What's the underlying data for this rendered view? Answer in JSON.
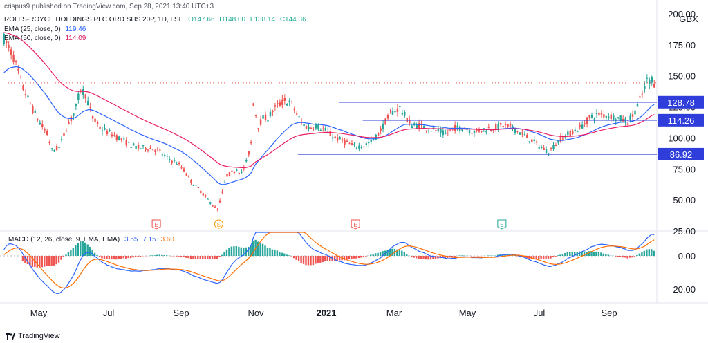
{
  "header": {
    "published": "crispus9 published on TradingView.com, Sep 28, 2021 13:40 UTC+3",
    "symbol": "ROLLS-ROYCE HOLDINGS PLC ORD SHS 20P, 1D, LSE",
    "ohlc": {
      "o": "O147.66",
      "h": "H148.00",
      "l": "L138.14",
      "c": "C144.36"
    },
    "ema25": {
      "label": "EMA (25, close, 0)",
      "value": "119.46"
    },
    "ema50": {
      "label": "EMA (50, close, 0)",
      "value": "114.09"
    },
    "currency": "GBX"
  },
  "macd_header": {
    "label": "MACD (12, 26, close, 9, EMA, EMA)",
    "v1": "3.55",
    "v2": "7.15",
    "v3": "3.60"
  },
  "footer": {
    "brand": "TradingView"
  },
  "colors": {
    "up": "#26a69a",
    "down": "#ef5350",
    "ema25": "#2962ff",
    "ema50": "#e91e63",
    "level": "#2f3eda",
    "macd": "#2962ff",
    "signal": "#ff6d00"
  },
  "chart_data": {
    "type": "candlestick",
    "x_ticks": [
      "May",
      "Jul",
      "Sep",
      "Nov",
      "2021",
      "Mar",
      "May",
      "Jul",
      "Sep"
    ],
    "price_axis": {
      "ticks": [
        "200.00",
        "175.00",
        "150.00",
        "125.00",
        "100.00",
        "75.00",
        "50.00",
        "25.00"
      ],
      "ylim": [
        25,
        200
      ]
    },
    "macd_axis": {
      "ticks": [
        "0.00",
        "-20.00"
      ]
    },
    "levels": [
      {
        "value": 128.78,
        "label": "128.78",
        "x_start": "Mar 2021"
      },
      {
        "value": 114.26,
        "label": "114.26",
        "x_start": "Apr 2021"
      },
      {
        "value": 86.92,
        "label": "86.92",
        "x_start": "Jan 2021"
      }
    ],
    "last_price": 144.36,
    "events": [
      {
        "label": "E",
        "x": "Jun 2020",
        "color": "#ef5350"
      },
      {
        "label": "S",
        "x": "Oct 2020",
        "color": "#ff9800"
      },
      {
        "label": "E",
        "x": "Mar 2021",
        "color": "#ef5350"
      },
      {
        "label": "E",
        "x": "Aug 2021",
        "color": "#26a69a"
      }
    ],
    "price_path": [
      [
        0,
        180
      ],
      [
        4,
        165
      ],
      [
        8,
        140
      ],
      [
        12,
        123
      ],
      [
        15,
        112
      ],
      [
        18,
        103
      ],
      [
        20,
        90
      ],
      [
        23,
        92
      ],
      [
        26,
        108
      ],
      [
        28,
        115
      ],
      [
        30,
        125
      ],
      [
        32,
        140
      ],
      [
        34,
        135
      ],
      [
        37,
        116
      ],
      [
        40,
        108
      ],
      [
        44,
        104
      ],
      [
        48,
        100
      ],
      [
        52,
        95
      ],
      [
        56,
        92
      ],
      [
        60,
        92
      ],
      [
        64,
        90
      ],
      [
        68,
        84
      ],
      [
        72,
        80
      ],
      [
        75,
        74
      ],
      [
        78,
        65
      ],
      [
        82,
        57
      ],
      [
        86,
        48
      ],
      [
        89,
        42
      ],
      [
        91,
        56
      ],
      [
        93,
        70
      ],
      [
        95,
        72
      ],
      [
        97,
        75
      ],
      [
        99,
        72
      ],
      [
        101,
        80
      ],
      [
        103,
        96
      ],
      [
        104,
        128
      ],
      [
        106,
        110
      ],
      [
        108,
        116
      ],
      [
        110,
        116
      ],
      [
        112,
        122
      ],
      [
        114,
        126
      ],
      [
        117,
        130
      ],
      [
        120,
        127
      ],
      [
        124,
        112
      ],
      [
        127,
        108
      ],
      [
        130,
        110
      ],
      [
        134,
        106
      ],
      [
        138,
        100
      ],
      [
        142,
        97
      ],
      [
        146,
        93
      ],
      [
        150,
        94
      ],
      [
        153,
        97
      ],
      [
        156,
        103
      ],
      [
        159,
        113
      ],
      [
        162,
        121
      ],
      [
        165,
        124
      ],
      [
        168,
        115
      ],
      [
        170,
        110
      ],
      [
        173,
        110
      ],
      [
        176,
        108
      ],
      [
        180,
        106
      ],
      [
        184,
        103
      ],
      [
        188,
        108
      ],
      [
        192,
        108
      ],
      [
        196,
        105
      ],
      [
        200,
        107
      ],
      [
        204,
        108
      ],
      [
        208,
        110
      ],
      [
        212,
        108
      ],
      [
        216,
        103
      ],
      [
        220,
        98
      ],
      [
        224,
        92
      ],
      [
        227,
        89
      ],
      [
        229,
        93
      ],
      [
        232,
        99
      ],
      [
        236,
        104
      ],
      [
        240,
        108
      ],
      [
        244,
        116
      ],
      [
        248,
        119
      ],
      [
        252,
        118
      ],
      [
        256,
        116
      ],
      [
        260,
        113
      ],
      [
        262,
        118
      ],
      [
        264,
        126
      ],
      [
        266,
        135
      ],
      [
        268,
        146
      ],
      [
        270,
        147
      ],
      [
        271,
        144
      ]
    ],
    "series": [
      {
        "name": "EMA (25, close, 0)",
        "last": 119.46
      },
      {
        "name": "EMA (50, close, 0)",
        "last": 114.09
      }
    ]
  }
}
